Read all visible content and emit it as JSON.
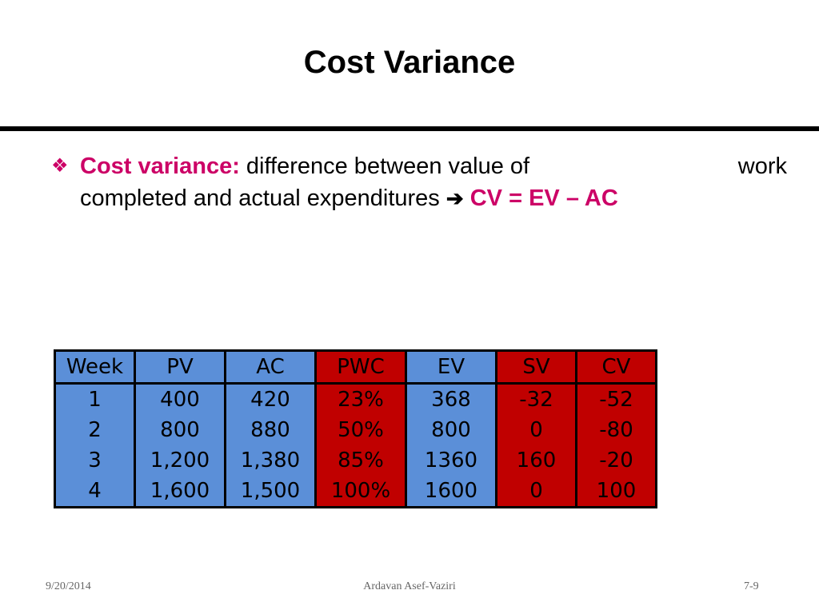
{
  "title": "Cost Variance",
  "bullet": {
    "term": "Cost variance:",
    "line1_text": "difference between value of",
    "line1_end": "work",
    "line2_text": "completed and actual expenditures",
    "arrow": "➔",
    "formula": "CV = EV – AC"
  },
  "table": {
    "headers": [
      "Week",
      "PV",
      "AC",
      "PWC",
      "EV",
      "SV",
      "CV"
    ],
    "header_colors": [
      "blue",
      "blue",
      "blue",
      "red",
      "blue",
      "red",
      "red"
    ],
    "rows": [
      [
        "1",
        "400",
        "420",
        "23%",
        "368",
        "-32",
        "-52"
      ],
      [
        "2",
        "800",
        "880",
        "50%",
        "800",
        "0",
        "-80"
      ],
      [
        "3",
        "1,200",
        "1,380",
        "85%",
        "1360",
        "160",
        "-20"
      ],
      [
        "4",
        "1,600",
        "1,500",
        "100%",
        "1600",
        "0",
        "100"
      ]
    ]
  },
  "colors": {
    "accent": "#cc0066",
    "table_blue": "#5b8fd8",
    "table_red": "#c00000"
  },
  "footer": {
    "date": "9/20/2014",
    "author": "Ardavan Asef-Vaziri",
    "page": "7-9"
  }
}
